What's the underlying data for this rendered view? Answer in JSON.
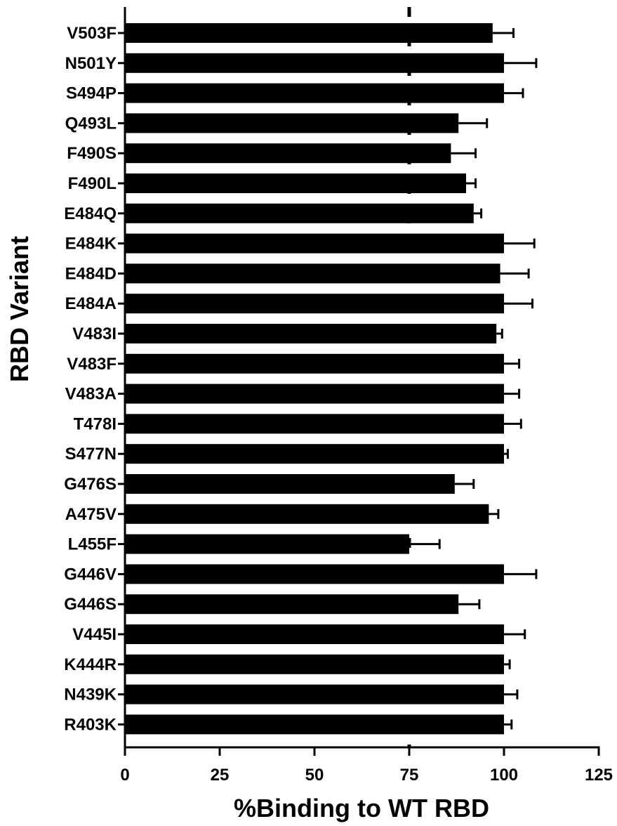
{
  "chart_data": {
    "type": "bar",
    "orientation": "horizontal",
    "title": "",
    "xlabel": "%Binding to WT RBD",
    "ylabel": "RBD Variant",
    "xlim": [
      0,
      125
    ],
    "xticks": [
      "0",
      "25",
      "50",
      "75",
      "100",
      "125"
    ],
    "grid": false,
    "legend": "none",
    "bar_color": "#000000",
    "reference_line": {
      "x": 75,
      "style": "dashed"
    },
    "categories": [
      "V503F",
      "N501Y",
      "S494P",
      "Q493L",
      "F490S",
      "F490L",
      "E484Q",
      "E484K",
      "E484D",
      "E484A",
      "V483I",
      "V483F",
      "V483A",
      "T478I",
      "S477N",
      "G476S",
      "A475V",
      "L455F",
      "G446V",
      "G446S",
      "V445I",
      "K444R",
      "N439K",
      "R403K"
    ],
    "values": [
      97,
      100,
      100,
      88,
      86,
      90,
      92,
      100,
      99,
      100,
      98,
      100,
      100,
      100,
      100,
      87,
      96,
      75,
      100,
      88,
      100,
      100,
      100,
      100
    ],
    "errors": [
      5.5,
      8.5,
      5,
      7.5,
      6.5,
      2.5,
      2,
      8,
      7.5,
      7.5,
      1.5,
      4,
      4,
      4.5,
      1,
      5,
      2.5,
      8,
      8.5,
      5.5,
      5.5,
      1.5,
      3.5,
      2
    ]
  }
}
